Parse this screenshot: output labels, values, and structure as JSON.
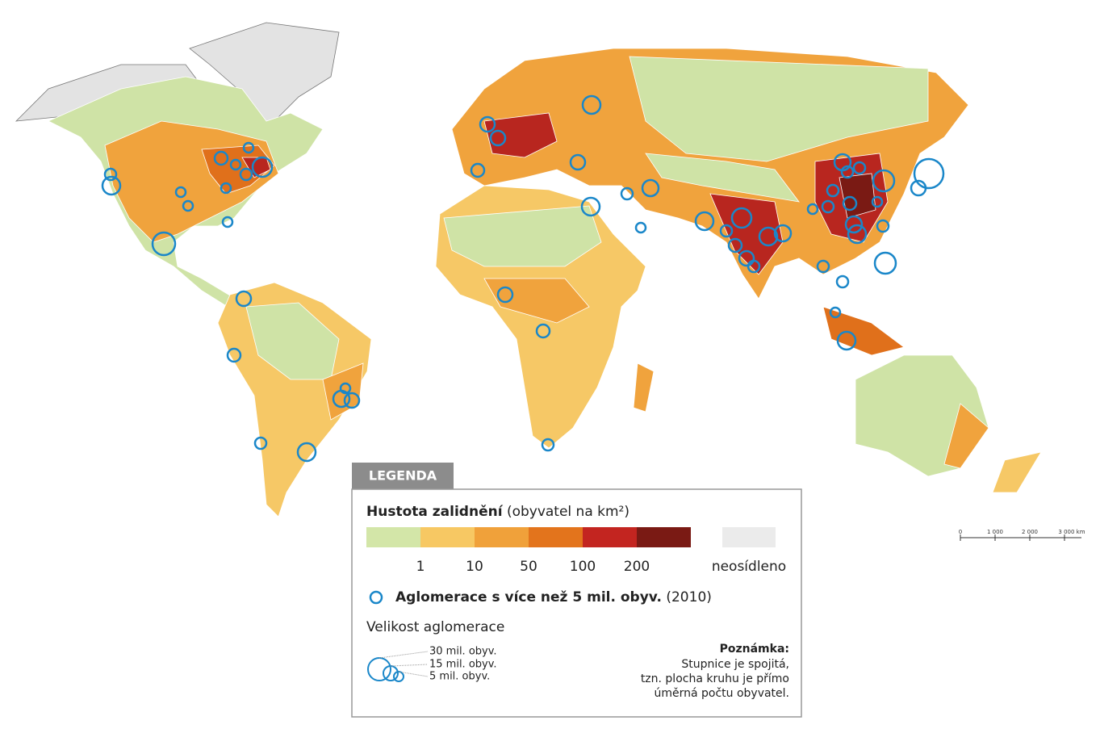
{
  "legend": {
    "tab": "LEGENDA",
    "density_title": "Hustota zalidnění",
    "density_unit": "(obyvatel na km²)",
    "breaks": [
      "1",
      "10",
      "50",
      "100",
      "200"
    ],
    "unsettled": "neosídleno",
    "agglomeration": "Aglomerace s více než 5 mil. obyv.",
    "agglomeration_year": "(2010)",
    "size_title": "Velikost aglomerace",
    "sizes": [
      "30 mil. obyv.",
      "15 mil. obyv.",
      "5 mil. obyv."
    ],
    "note_title": "Poznámka:",
    "note_lines": [
      "Stupnice je spojitá,",
      "tzn. plocha kruhu je přímo",
      "úměrná počtu obyvatel."
    ]
  },
  "scale_bar": {
    "labels": [
      "0",
      "1 000",
      "2 000",
      "3 000 km"
    ]
  }
}
